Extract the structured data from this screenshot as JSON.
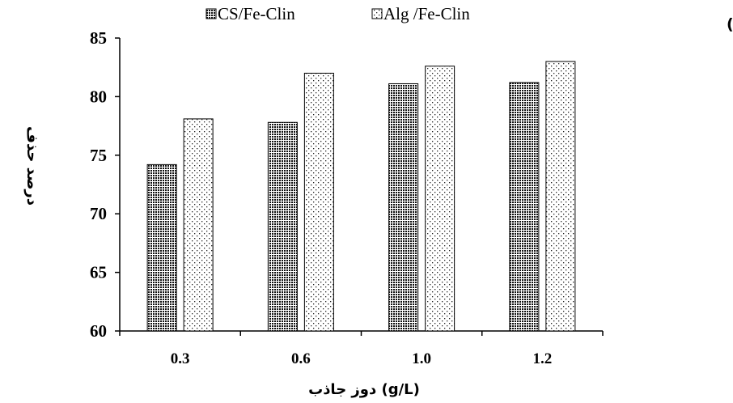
{
  "panel_label": "(الف)",
  "legend": {
    "items": [
      {
        "label": "CS/Fe-Clin",
        "marker": "dense-check-pattern"
      },
      {
        "label": "Alg /Fe-Clin",
        "marker": "sparse-dot-pattern"
      }
    ]
  },
  "chart_data": {
    "type": "bar",
    "categories": [
      "0.3",
      "0.6",
      "1.0",
      "1.2"
    ],
    "series": [
      {
        "name": "CS/Fe-Clin",
        "values": [
          74.2,
          77.8,
          81.1,
          81.2
        ],
        "fill": "dense-check",
        "color": "#000000"
      },
      {
        "name": "Alg /Fe-Clin",
        "values": [
          78.1,
          82.0,
          82.6,
          83.0
        ],
        "fill": "sparse-dots",
        "color": "#000000"
      }
    ],
    "xlabel": "دوز جاذب (g/L)",
    "ylabel": "درصد حذف",
    "ylim": [
      60,
      85
    ],
    "yticks": [
      60,
      65,
      70,
      75,
      80,
      85
    ],
    "grid": false,
    "legend_position": "top"
  }
}
